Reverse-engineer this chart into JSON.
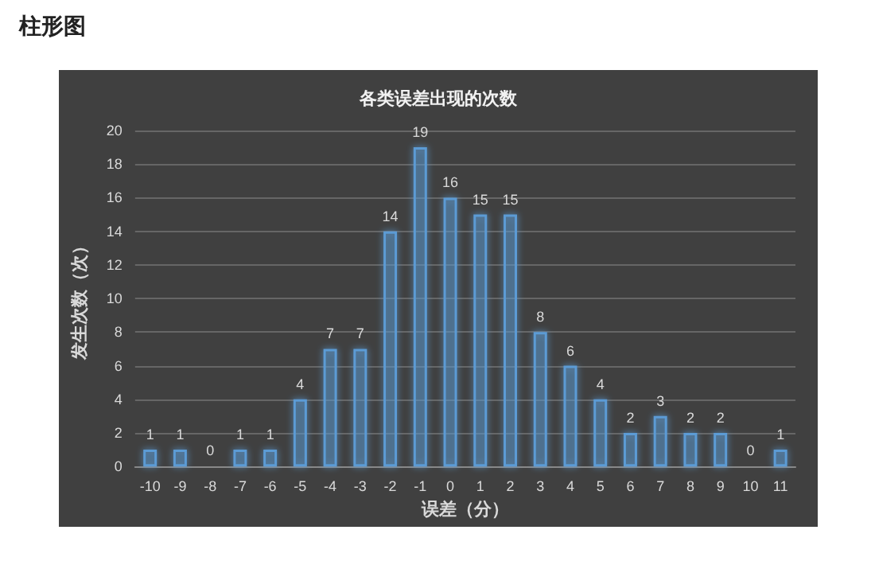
{
  "chart_data": {
    "type": "bar",
    "title": "各类误差出现的次数",
    "xlabel": "误差（分）",
    "ylabel": "发生次数（次）",
    "annotations": [
      "柱形图"
    ],
    "categories": [
      "-10",
      "-9",
      "-8",
      "-7",
      "-6",
      "-5",
      "-4",
      "-3",
      "-2",
      "-1",
      "0",
      "1",
      "2",
      "3",
      "4",
      "5",
      "6",
      "7",
      "8",
      "9",
      "10",
      "11"
    ],
    "values": [
      1,
      1,
      0,
      1,
      1,
      4,
      7,
      7,
      14,
      19,
      16,
      15,
      15,
      8,
      6,
      4,
      2,
      3,
      2,
      2,
      0,
      1
    ],
    "color": "#5b9bd5",
    "ylim": [
      0,
      20
    ],
    "yticks": [
      0,
      2,
      4,
      6,
      8,
      10,
      12,
      14,
      16,
      18,
      20
    ],
    "grid": "y",
    "data_labels": true
  }
}
